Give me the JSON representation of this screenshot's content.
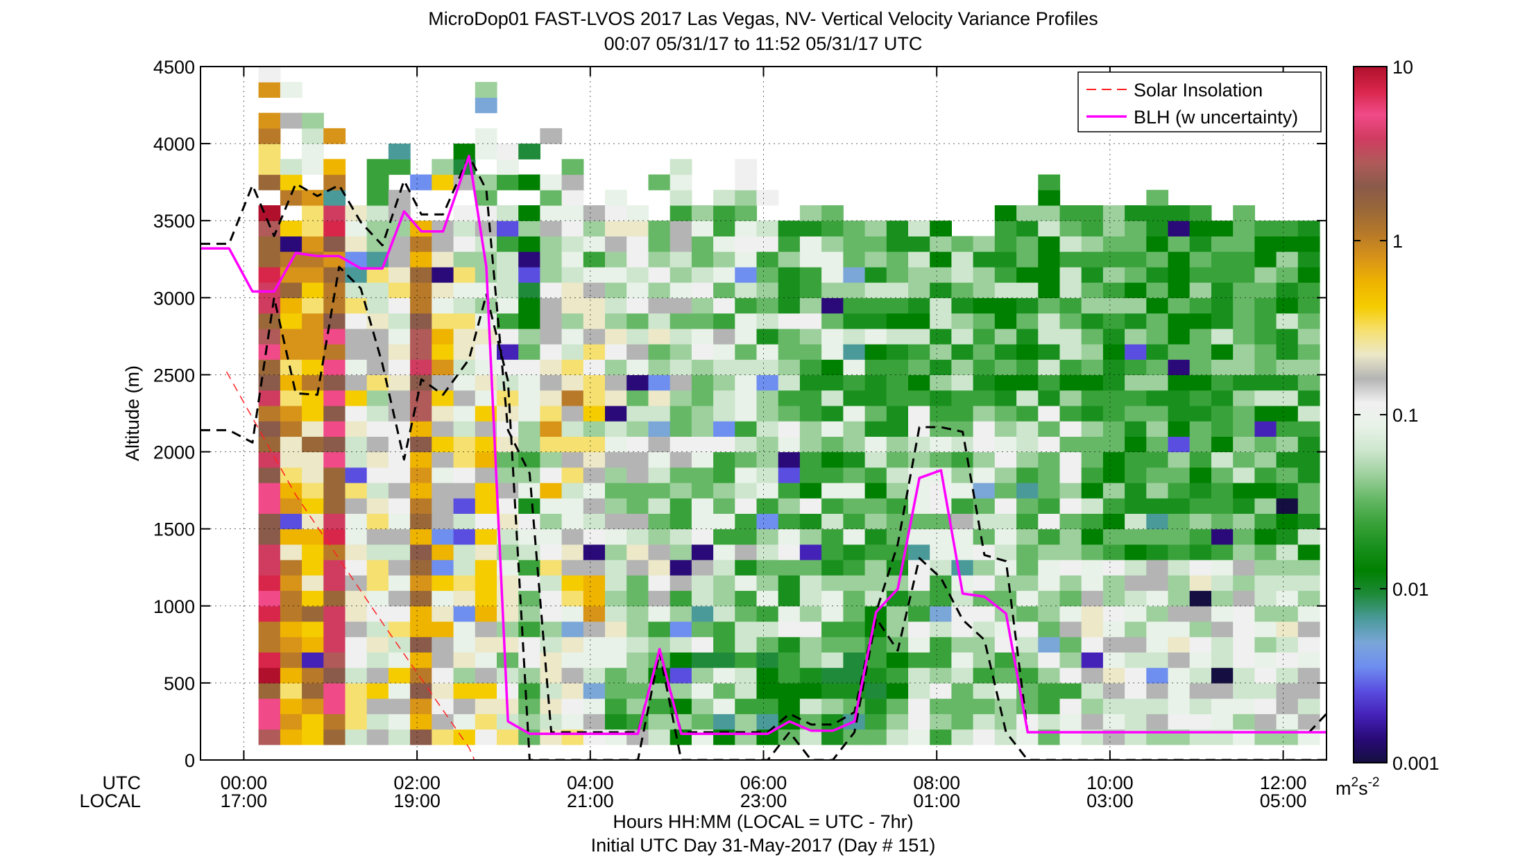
{
  "chart_data": {
    "type": "heatmap",
    "title": "MicroDop01 FAST-LVOS 2017 Las Vegas, NV- Vertical Velocity Variance Profiles",
    "subtitle": "00:07 05/31/17 to 11:52 05/31/17  UTC",
    "xlabel": "Hours HH:MM  (LOCAL = UTC - 7hr)",
    "xlabel_day": "Initial UTC Day 31-May-2017 (Day # 151)",
    "ylabel": "Altitude (m)",
    "row_labels": {
      "utc": "UTC",
      "local": "LOCAL"
    },
    "xlim_hours": [
      -0.5,
      12.5
    ],
    "ylim": [
      0,
      4500
    ],
    "x_ticks": [
      {
        "hour": 0,
        "utc": "00:00",
        "local": "17:00"
      },
      {
        "hour": 2,
        "utc": "02:00",
        "local": "19:00"
      },
      {
        "hour": 4,
        "utc": "04:00",
        "local": "21:00"
      },
      {
        "hour": 6,
        "utc": "06:00",
        "local": "23:00"
      },
      {
        "hour": 8,
        "utc": "08:00",
        "local": "01:00"
      },
      {
        "hour": 10,
        "utc": "10:00",
        "local": "03:00"
      },
      {
        "hour": 12,
        "utc": "12:00",
        "local": "05:00"
      }
    ],
    "y_ticks": [
      "0",
      "500",
      "1000",
      "1500",
      "2000",
      "2500",
      "3000",
      "3500",
      "4000",
      "4500"
    ],
    "grid": true,
    "legend_position": "top-right",
    "colorbar": {
      "scale": "log",
      "range": [
        0.001,
        10
      ],
      "tick_labels": [
        "0.001",
        "0.01",
        "0.1",
        "1",
        "10"
      ],
      "units_base": "m",
      "units_exp1": "2",
      "units_mid": "s",
      "units_exp2": "-2"
    },
    "colormap_hex": [
      "#140f40",
      "#2a0a78",
      "#4422b8",
      "#5a4ee0",
      "#6e8ef0",
      "#7aa6d8",
      "#4a9a9a",
      "#1f8a3a",
      "#008000",
      "#19901e",
      "#3aa23a",
      "#66b866",
      "#9ed09e",
      "#cde6cd",
      "#e8f2e8",
      "#f0f0f0",
      "#b4b4b4",
      "#ece8c8",
      "#f6e070",
      "#f5cc00",
      "#eeb400",
      "#d89418",
      "#b87a28",
      "#9a6838",
      "#8a5a4a",
      "#b05a5a",
      "#d03c60",
      "#f04a88",
      "#d8264a",
      "#b0102c"
    ],
    "series": [
      {
        "name": "Solar Insolation",
        "color": "#ff2020",
        "dash": true,
        "x": [
          -0.2,
          0.6,
          1.6,
          2.6,
          2.82
        ],
        "y": [
          2520,
          1720,
          890,
          80,
          -200
        ]
      },
      {
        "name": "BLH (w uncertainty)",
        "color": "#ff00ff",
        "x": [
          -0.5,
          -0.17,
          0.1,
          0.35,
          0.6,
          0.85,
          1.1,
          1.35,
          1.6,
          1.85,
          2.05,
          2.3,
          2.6,
          2.8,
          3.05,
          3.3,
          3.55,
          3.8,
          4.05,
          4.3,
          4.55,
          4.8,
          5.05,
          5.3,
          5.55,
          5.8,
          6.05,
          6.3,
          6.55,
          6.8,
          7.05,
          7.3,
          7.55,
          7.8,
          8.05,
          8.3,
          8.55,
          8.8,
          9.05,
          9.3,
          9.55,
          9.8,
          10.05,
          10.3,
          10.55,
          10.8,
          11.05,
          11.3,
          11.55,
          11.8,
          12.05,
          12.3,
          12.5
        ],
        "y": [
          3320,
          3320,
          3040,
          3040,
          3290,
          3270,
          3270,
          3190,
          3190,
          3560,
          3430,
          3430,
          3920,
          3200,
          250,
          170,
          170,
          170,
          170,
          170,
          170,
          720,
          170,
          170,
          170,
          170,
          170,
          250,
          190,
          190,
          250,
          960,
          1110,
          1830,
          1880,
          1080,
          1060,
          950,
          180,
          180,
          180,
          180,
          180,
          180,
          180,
          180,
          180,
          180,
          180,
          180,
          180,
          180,
          180
        ]
      }
    ],
    "blh_upper": {
      "x": [
        -0.5,
        -0.17,
        0.1,
        0.35,
        0.6,
        0.85,
        1.1,
        1.35,
        1.6,
        1.85,
        2.05,
        2.3,
        2.6,
        2.8,
        3.05,
        3.3,
        3.55,
        3.8,
        4.05,
        4.3,
        4.55,
        4.8,
        5.05,
        5.3,
        5.55,
        5.8,
        6.05,
        6.3,
        6.55,
        6.8,
        7.05,
        7.3,
        7.55,
        7.8,
        8.05,
        8.3,
        8.55,
        8.8,
        9.05,
        9.3,
        9.55,
        9.8,
        10.05,
        10.3,
        10.55,
        10.8,
        11.05,
        11.3,
        11.55,
        11.8,
        12.05,
        12.3,
        12.5
      ],
      "y": [
        3350,
        3350,
        3730,
        3400,
        3740,
        3660,
        3730,
        3490,
        3340,
        3760,
        3540,
        3540,
        3920,
        3700,
        2140,
        1860,
        180,
        180,
        180,
        180,
        180,
        720,
        180,
        180,
        180,
        180,
        180,
        300,
        230,
        230,
        310,
        960,
        1400,
        2160,
        2160,
        2130,
        1330,
        1290,
        180,
        180,
        180,
        180,
        180,
        180,
        180,
        180,
        180,
        180,
        180,
        180,
        180,
        180,
        300
      ]
    },
    "blh_lower": {
      "x": [
        -0.5,
        -0.17,
        0.1,
        0.35,
        0.6,
        0.85,
        1.1,
        1.35,
        1.6,
        1.85,
        2.05,
        2.3,
        2.6,
        2.8,
        3.05,
        3.3,
        3.55,
        3.8,
        4.05,
        4.3,
        4.55,
        4.8,
        5.05,
        5.3,
        5.55,
        5.8,
        6.05,
        6.3,
        6.55,
        6.8,
        7.05,
        7.3,
        7.55,
        7.8,
        8.05,
        8.3,
        8.55,
        8.8,
        9.05,
        9.3,
        9.55,
        9.8,
        10.05,
        10.3,
        10.55,
        10.8,
        11.05,
        11.3,
        11.55,
        11.8,
        12.05,
        12.3,
        12.5
      ],
      "y": [
        2140,
        2140,
        2060,
        3000,
        2380,
        2370,
        3200,
        3060,
        2570,
        1950,
        2470,
        2370,
        2600,
        3020,
        2460,
        0,
        0,
        0,
        0,
        0,
        0,
        700,
        0,
        0,
        0,
        0,
        0,
        180,
        0,
        0,
        180,
        920,
        710,
        1310,
        1180,
        910,
        780,
        180,
        0,
        0,
        0,
        0,
        0,
        0,
        0,
        0,
        0,
        0,
        0,
        0,
        0,
        0,
        0
      ]
    }
  }
}
